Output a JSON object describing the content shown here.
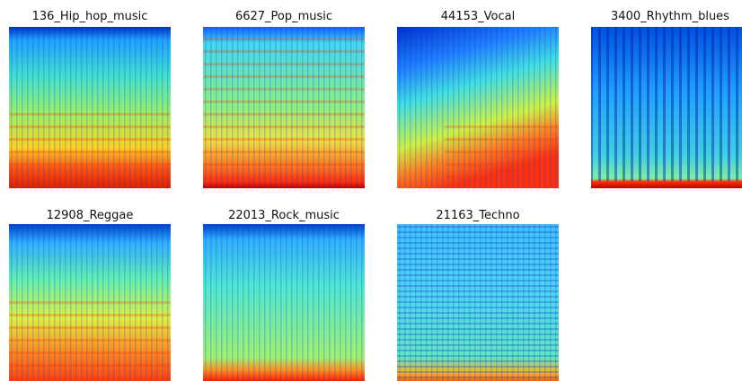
{
  "panels": [
    {
      "title": "136_Hip_hop_music"
    },
    {
      "title": "6627_Pop_music"
    },
    {
      "title": "44153_Vocal"
    },
    {
      "title": "3400_Rhythm_blues"
    },
    {
      "title": "12908_Reggae"
    },
    {
      "title": "22013_Rock_music"
    },
    {
      "title": "21163_Techno"
    }
  ]
}
